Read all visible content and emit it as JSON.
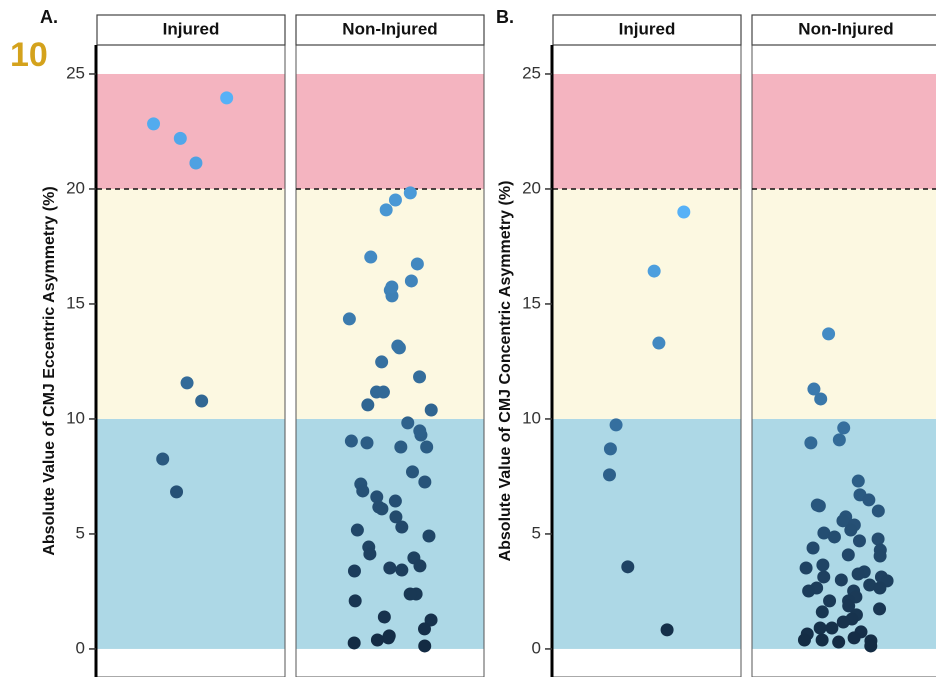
{
  "page_number": "10",
  "chart_data": [
    {
      "type": "strip",
      "panel_label": "A.",
      "ylabel": "Absolute Value of CMJ Eccentric Asymmetry (%)",
      "ylim": [
        -1.22,
        26.26
      ],
      "yticks": [
        0,
        5,
        10,
        15,
        20,
        25
      ],
      "threshold": 20,
      "bands": [
        {
          "from": 0,
          "to": 10,
          "color": "#add8e6"
        },
        {
          "from": 10,
          "to": 20,
          "color": "#fcf8e1"
        },
        {
          "from": 20,
          "to": 25,
          "color": "#f4b4c0"
        }
      ],
      "point_colors": [
        "#132b43",
        "#56b1f7"
      ],
      "facets": [
        {
          "name": "Injured",
          "values": [
            23.96,
            22.83,
            21.13,
            22.2,
            11.57,
            10.78,
            8.26,
            6.83
          ]
        },
        {
          "name": "Non-Injured",
          "values": [
            19.83,
            19.52,
            19.09,
            17.04,
            16.74,
            16.0,
            15.6,
            15.35,
            15.74,
            14.35,
            13.17,
            13.09,
            12.48,
            11.83,
            11.17,
            11.17,
            10.61,
            10.39,
            9.83,
            9.3,
            9.48,
            9.04,
            8.78,
            8.78,
            8.96,
            7.7,
            7.17,
            7.26,
            6.87,
            6.61,
            6.43,
            6.17,
            6.09,
            5.74,
            5.17,
            5.3,
            4.91,
            4.43,
            4.13,
            3.96,
            3.61,
            3.43,
            3.39,
            3.52,
            2.39,
            2.39,
            2.09,
            1.39,
            1.26,
            0.87,
            0.48,
            0.39,
            0.57,
            0.26,
            0.13
          ]
        }
      ]
    },
    {
      "type": "strip",
      "panel_label": "B.",
      "ylabel": "Absolute Value of CMJ Concentric Asymmetry (%)",
      "ylim": [
        -1.22,
        26.26
      ],
      "yticks": [
        0,
        5,
        10,
        15,
        20,
        25
      ],
      "threshold": 20,
      "bands": [
        {
          "from": 0,
          "to": 10,
          "color": "#add8e6"
        },
        {
          "from": 10,
          "to": 20,
          "color": "#fcf8e1"
        },
        {
          "from": 20,
          "to": 25,
          "color": "#f4b4c0"
        }
      ],
      "point_colors": [
        "#132b43",
        "#56b1f7"
      ],
      "facets": [
        {
          "name": "Injured",
          "values": [
            19.0,
            16.43,
            13.3,
            9.74,
            8.7,
            7.57,
            3.57,
            0.83
          ]
        },
        {
          "name": "Non-Injured",
          "values": [
            13.7,
            11.3,
            10.87,
            9.61,
            9.09,
            8.96,
            7.3,
            6.7,
            6.48,
            6.26,
            6.22,
            6.0,
            5.74,
            5.57,
            5.39,
            5.17,
            5.04,
            4.87,
            4.78,
            4.7,
            4.39,
            4.3,
            4.09,
            4.04,
            3.65,
            3.52,
            3.35,
            3.13,
            3.0,
            3.26,
            3.13,
            2.96,
            2.78,
            2.65,
            2.65,
            2.52,
            2.52,
            2.26,
            2.09,
            2.09,
            1.87,
            1.74,
            1.61,
            1.48,
            1.3,
            1.17,
            0.91,
            0.91,
            0.74,
            0.65,
            0.39,
            0.35,
            0.3,
            0.39,
            0.13,
            0.48
          ]
        }
      ]
    }
  ]
}
